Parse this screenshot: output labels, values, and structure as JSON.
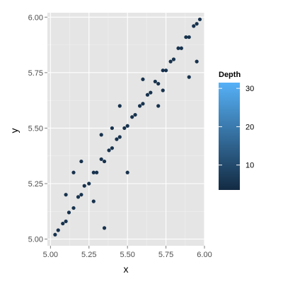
{
  "colors": {
    "panel_background": "#e5e5e5",
    "major_grid": "#ffffff",
    "minor_grid": "#f2f2f2",
    "point_low": "#132b43",
    "point_high": "#56b1f7"
  },
  "chart_data": {
    "type": "scatter",
    "title": "",
    "xlabel": "x",
    "ylabel": "y",
    "xlim": [
      4.98,
      6.0
    ],
    "ylim": [
      4.97,
      6.02
    ],
    "x_ticks": [
      5.0,
      5.25,
      5.5,
      5.75,
      6.0
    ],
    "x_tick_labels": [
      "5.00",
      "5.25",
      "5.50",
      "5.75",
      "6.00"
    ],
    "y_ticks": [
      5.0,
      5.25,
      5.5,
      5.75,
      6.0
    ],
    "y_tick_labels": [
      "5.00",
      "5.25",
      "5.50",
      "5.75",
      "6.00"
    ],
    "grid": true,
    "legend": {
      "title": "Depth",
      "placement": "right",
      "type": "colorbar",
      "range": [
        3.5,
        31.5
      ],
      "ticks": [
        10,
        20,
        30
      ],
      "tick_labels": [
        "10",
        "20",
        "30"
      ]
    },
    "series": [
      {
        "color_variable": "Depth",
        "description_points": [
          [
            5.03,
            5.02,
            5
          ],
          [
            5.05,
            5.04,
            5
          ],
          [
            5.08,
            5.07,
            5
          ],
          [
            5.1,
            5.08,
            5
          ],
          [
            5.12,
            5.12,
            5
          ],
          [
            5.15,
            5.14,
            5
          ],
          [
            5.18,
            5.19,
            5
          ],
          [
            5.2,
            5.2,
            5
          ],
          [
            5.22,
            5.24,
            5
          ],
          [
            5.25,
            5.25,
            5
          ],
          [
            5.28,
            5.3,
            5
          ],
          [
            5.3,
            5.3,
            5
          ],
          [
            5.33,
            5.36,
            5
          ],
          [
            5.35,
            5.35,
            5
          ],
          [
            5.38,
            5.4,
            5
          ],
          [
            5.4,
            5.41,
            5
          ],
          [
            5.43,
            5.45,
            5
          ],
          [
            5.45,
            5.46,
            5
          ],
          [
            5.48,
            5.5,
            5
          ],
          [
            5.5,
            5.51,
            5
          ],
          [
            5.53,
            5.55,
            5
          ],
          [
            5.55,
            5.56,
            5
          ],
          [
            5.58,
            5.6,
            5
          ],
          [
            5.6,
            5.61,
            5
          ],
          [
            5.63,
            5.65,
            5
          ],
          [
            5.65,
            5.66,
            5
          ],
          [
            5.68,
            5.71,
            5
          ],
          [
            5.7,
            5.7,
            5
          ],
          [
            5.73,
            5.76,
            5
          ],
          [
            5.75,
            5.76,
            5
          ],
          [
            5.78,
            5.8,
            5
          ],
          [
            5.8,
            5.81,
            5
          ],
          [
            5.83,
            5.86,
            5
          ],
          [
            5.85,
            5.86,
            5
          ],
          [
            5.88,
            5.91,
            5
          ],
          [
            5.9,
            5.91,
            5
          ],
          [
            5.93,
            5.96,
            5
          ],
          [
            5.95,
            5.97,
            5
          ],
          [
            5.97,
            5.99,
            5
          ]
        ],
        "outliers": [
          [
            5.1,
            5.2,
            5
          ],
          [
            5.15,
            5.3,
            5
          ],
          [
            5.33,
            5.47,
            5
          ],
          [
            5.45,
            5.6,
            5
          ],
          [
            5.6,
            5.72,
            5
          ],
          [
            5.28,
            5.17,
            5
          ],
          [
            5.35,
            5.05,
            5
          ],
          [
            5.5,
            5.3,
            5
          ],
          [
            5.7,
            5.6,
            5
          ],
          [
            5.73,
            5.67,
            5
          ],
          [
            5.9,
            5.73,
            5
          ],
          [
            5.95,
            5.8,
            5
          ],
          [
            5.2,
            5.35,
            5
          ],
          [
            5.4,
            5.5,
            5
          ]
        ]
      }
    ]
  }
}
